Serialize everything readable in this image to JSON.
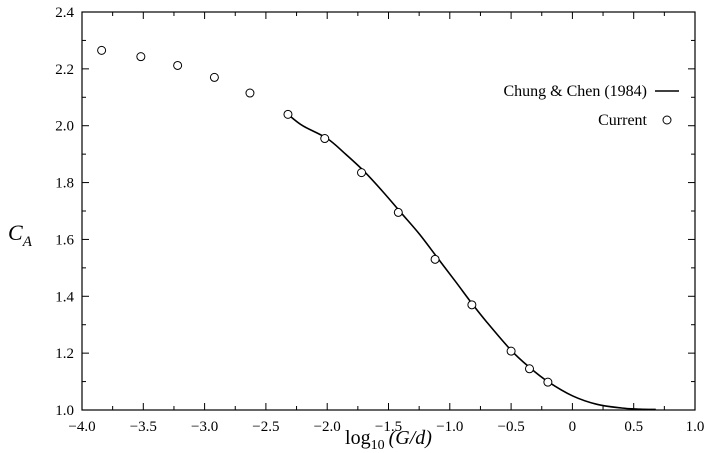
{
  "chart_data": {
    "type": "scatter",
    "xlim": [
      -4.0,
      1.0
    ],
    "ylim": [
      1.0,
      2.4
    ],
    "x_ticks": [
      -4.0,
      -3.5,
      -3.0,
      -2.5,
      -2.0,
      -1.5,
      -1.0,
      -0.5,
      0,
      0.5,
      1.0
    ],
    "x_tick_labels": [
      "−4.0",
      "−3.5",
      "−3.0",
      "−2.5",
      "−2.0",
      "−1.5",
      "−1.0",
      "−0.5",
      "0",
      "0.5",
      "1.0"
    ],
    "y_ticks": [
      1.0,
      1.2,
      1.4,
      1.6,
      1.8,
      2.0,
      2.2,
      2.4
    ],
    "y_tick_labels": [
      "1.0",
      "1.2",
      "1.4",
      "1.6",
      "1.8",
      "2.0",
      "2.2",
      "2.4"
    ],
    "xlabel": {
      "base": "log",
      "sub": "10",
      "rest": "(G/d)"
    },
    "ylabel": {
      "base": "C",
      "sub": "A"
    },
    "grid": false,
    "legend_position": "top-right",
    "series": [
      {
        "name": "Chung & Chen (1984)",
        "style": "line",
        "color": "#000000",
        "x": [
          -2.32,
          -2.2,
          -2.0,
          -1.85,
          -1.7,
          -1.55,
          -1.4,
          -1.25,
          -1.1,
          -0.95,
          -0.82,
          -0.7,
          -0.5,
          -0.35,
          -0.2,
          0.0,
          0.2,
          0.4,
          0.55,
          0.68
        ],
        "y": [
          2.04,
          2.0,
          1.955,
          1.9,
          1.84,
          1.77,
          1.695,
          1.62,
          1.535,
          1.45,
          1.375,
          1.31,
          1.21,
          1.15,
          1.1,
          1.05,
          1.02,
          1.007,
          1.003,
          1.002
        ]
      },
      {
        "name": "Current",
        "style": "marker",
        "marker": "open-circle",
        "color": "#000000",
        "x": [
          -3.84,
          -3.52,
          -3.22,
          -2.92,
          -2.63,
          -2.32,
          -2.02,
          -1.72,
          -1.42,
          -1.12,
          -0.82,
          -0.5,
          -0.35,
          -0.2
        ],
        "y": [
          2.265,
          2.243,
          2.212,
          2.17,
          2.115,
          2.04,
          1.955,
          1.835,
          1.695,
          1.53,
          1.37,
          1.207,
          1.145,
          1.098
        ]
      }
    ]
  }
}
